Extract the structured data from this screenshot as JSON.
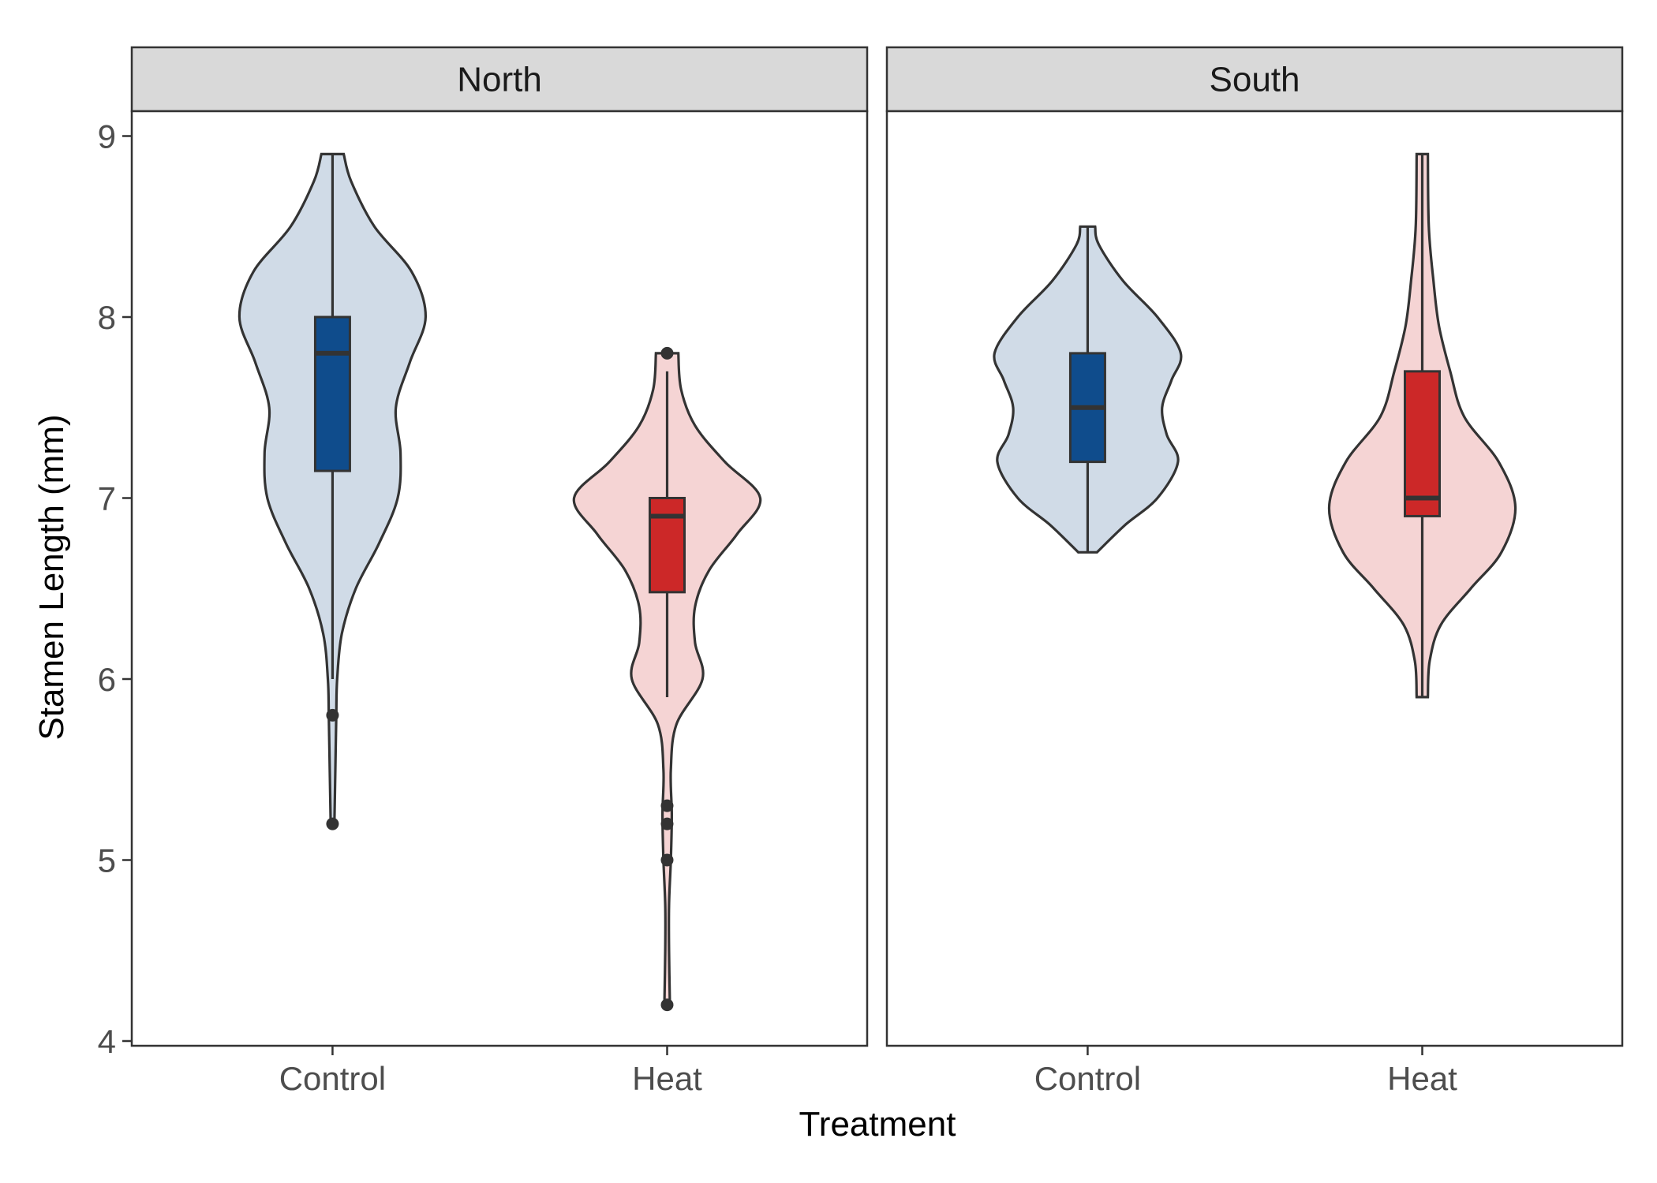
{
  "chart_data": {
    "type": "violin",
    "xlabel": "Treatment",
    "ylabel": "Stamen Length (mm)",
    "ylim": [
      3.95,
      9.1
    ],
    "yticks": [
      4,
      5,
      6,
      7,
      8,
      9
    ],
    "categories": [
      "Control",
      "Heat"
    ],
    "colors": {
      "Control": {
        "fill": "#d0dbe7",
        "box": "#0f4c8c"
      },
      "Heat": {
        "fill": "#f5d4d4",
        "box": "#cc2828"
      },
      "outline": "#333333",
      "strip": "#d9d9d9"
    },
    "facets": [
      {
        "name": "North",
        "groups": [
          {
            "category": "Control",
            "box": {
              "min": 6.0,
              "q1": 7.15,
              "median": 7.8,
              "q3": 8.0,
              "max": 8.9
            },
            "outliers": [
              5.8,
              5.2
            ],
            "density": [
              [
                5.2,
                0.02
              ],
              [
                5.5,
                0.03
              ],
              [
                5.8,
                0.04
              ],
              [
                6.0,
                0.05
              ],
              [
                6.25,
                0.1
              ],
              [
                6.5,
                0.25
              ],
              [
                6.75,
                0.5
              ],
              [
                7.0,
                0.7
              ],
              [
                7.25,
                0.73
              ],
              [
                7.5,
                0.68
              ],
              [
                7.75,
                0.83
              ],
              [
                8.0,
                1.0
              ],
              [
                8.25,
                0.85
              ],
              [
                8.5,
                0.45
              ],
              [
                8.75,
                0.2
              ],
              [
                8.9,
                0.12
              ]
            ]
          },
          {
            "category": "Heat",
            "box": {
              "min": 5.9,
              "q1": 6.48,
              "median": 6.9,
              "q3": 7.0,
              "max": 7.7
            },
            "outliers": [
              7.8,
              5.3,
              5.2,
              5.0,
              4.2
            ],
            "density": [
              [
                4.2,
                0.03
              ],
              [
                4.5,
                0.02
              ],
              [
                4.75,
                0.02
              ],
              [
                5.0,
                0.04
              ],
              [
                5.25,
                0.05
              ],
              [
                5.5,
                0.04
              ],
              [
                5.75,
                0.1
              ],
              [
                6.0,
                0.38
              ],
              [
                6.2,
                0.3
              ],
              [
                6.4,
                0.3
              ],
              [
                6.6,
                0.45
              ],
              [
                6.8,
                0.75
              ],
              [
                7.0,
                1.0
              ],
              [
                7.2,
                0.62
              ],
              [
                7.4,
                0.3
              ],
              [
                7.6,
                0.15
              ],
              [
                7.8,
                0.12
              ]
            ]
          }
        ]
      },
      {
        "name": "South",
        "groups": [
          {
            "category": "Control",
            "box": {
              "min": 6.7,
              "q1": 7.2,
              "median": 7.5,
              "q3": 7.8,
              "max": 8.5
            },
            "outliers": [],
            "density": [
              [
                6.7,
                0.1
              ],
              [
                6.85,
                0.4
              ],
              [
                7.0,
                0.75
              ],
              [
                7.2,
                0.97
              ],
              [
                7.35,
                0.85
              ],
              [
                7.5,
                0.8
              ],
              [
                7.65,
                0.9
              ],
              [
                7.8,
                1.0
              ],
              [
                8.0,
                0.75
              ],
              [
                8.2,
                0.38
              ],
              [
                8.4,
                0.12
              ],
              [
                8.5,
                0.08
              ]
            ]
          },
          {
            "category": "Heat",
            "box": {
              "min": 5.9,
              "q1": 6.9,
              "median": 7.0,
              "q3": 7.7,
              "max": 8.9
            },
            "outliers": [],
            "density": [
              [
                5.9,
                0.06
              ],
              [
                6.1,
                0.08
              ],
              [
                6.3,
                0.2
              ],
              [
                6.5,
                0.52
              ],
              [
                6.7,
                0.85
              ],
              [
                6.95,
                1.0
              ],
              [
                7.2,
                0.82
              ],
              [
                7.45,
                0.45
              ],
              [
                7.7,
                0.3
              ],
              [
                7.95,
                0.18
              ],
              [
                8.2,
                0.12
              ],
              [
                8.5,
                0.07
              ],
              [
                8.9,
                0.06
              ]
            ]
          }
        ]
      }
    ]
  }
}
